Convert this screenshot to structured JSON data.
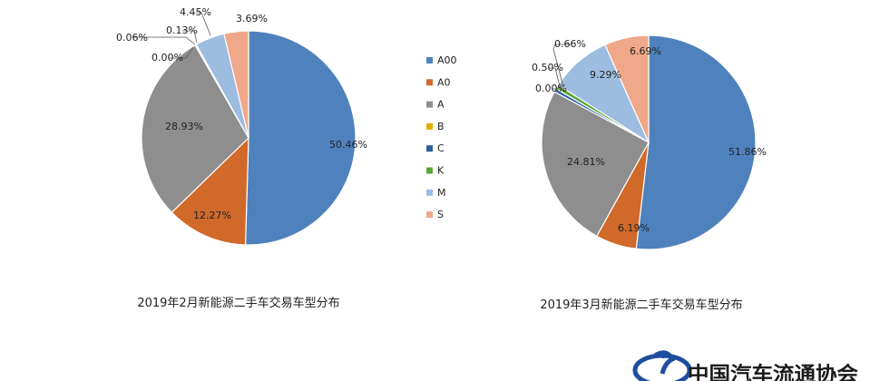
{
  "chart_data": [
    {
      "type": "pie",
      "title": "2019年2月新能源二手车交易车型分布",
      "categories": [
        "A00",
        "A0",
        "A",
        "B",
        "C",
        "K",
        "M",
        "S"
      ],
      "values": [
        50.46,
        12.27,
        28.93,
        0.0,
        0.06,
        0.13,
        4.45,
        3.69
      ],
      "labels": [
        "50.46%",
        "12.27%",
        "28.93%",
        "0.00%",
        "0.06%",
        "0.13%",
        "4.45%",
        "3.69%"
      ]
    },
    {
      "type": "pie",
      "title": "2019年3月新能源二手车交易车型分布",
      "categories": [
        "A00",
        "A0",
        "A",
        "B",
        "C",
        "K",
        "M",
        "S"
      ],
      "values": [
        51.86,
        6.19,
        24.81,
        0.0,
        0.5,
        0.66,
        9.29,
        6.69
      ],
      "labels": [
        "51.86%",
        "6.19%",
        "24.81%",
        "0.00%",
        "0.50%",
        "0.66%",
        "9.29%",
        "6.69%"
      ]
    }
  ],
  "legend": {
    "position": "center",
    "items": [
      {
        "name": "A00",
        "color": "#4F81BD"
      },
      {
        "name": "A0",
        "color": "#D0692A"
      },
      {
        "name": "A",
        "color": "#8E8E8E"
      },
      {
        "name": "B",
        "color": "#E0B000"
      },
      {
        "name": "C",
        "color": "#2E5E9E"
      },
      {
        "name": "K",
        "color": "#5AA63A"
      },
      {
        "name": "M",
        "color": "#9DBDE0"
      },
      {
        "name": "S",
        "color": "#F0A88A"
      }
    ]
  },
  "logo": {
    "text": "中国汽车流通协会",
    "icon": "association-logo-icon",
    "color": "#1F4E9E"
  }
}
